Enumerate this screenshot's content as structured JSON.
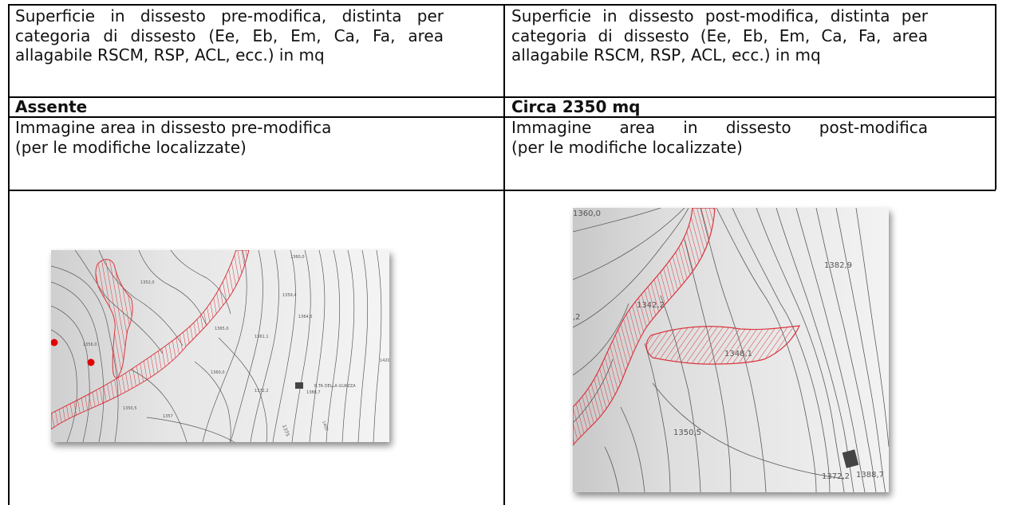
{
  "table": {
    "row1": {
      "left": "Superficie in dissesto pre-modifica, distinta per categoria di dissesto (Ee, Eb, Em, Ca, Fa, area allagabile RSCM, RSP, ACL, ecc.) in mq",
      "right": "Superficie in dissesto post-modifica, distinta per categoria di dissesto (Ee, Eb, Em, Ca, Fa, area allagabile RSCM, RSP, ACL, ecc.) in mq"
    },
    "row2": {
      "left": "Assente",
      "right": "Circa 2350 mq"
    },
    "row3": {
      "left_line1": "Immagine area in dissesto pre-modifica",
      "left_line2": "(per le modifiche localizzate)",
      "right_line1": "Immagine area in dissesto post-modifica",
      "right_line2": "(per le modifiche localizzate)"
    }
  },
  "map_pre": {
    "labels": [
      "1360,0",
      "1352,0",
      "1359,4",
      "1361,1",
      "1364,5",
      "1356,0",
      "1365,0",
      "1360,0",
      "1372,2",
      "1388,7",
      "B.TA DELLA GUAZZA",
      "1375",
      "1400",
      "1350,5",
      "1357",
      "1420"
    ]
  },
  "map_post": {
    "labels": [
      "1360,0",
      "1382,9",
      "1342,2",
      "1348,1",
      "1350,5",
      "1372,2",
      "1388,7",
      ",2"
    ]
  },
  "colors": {
    "hatch": "#d9363e",
    "contour": "#5a5a5a",
    "marker": "#e00000",
    "building": "#444444"
  }
}
